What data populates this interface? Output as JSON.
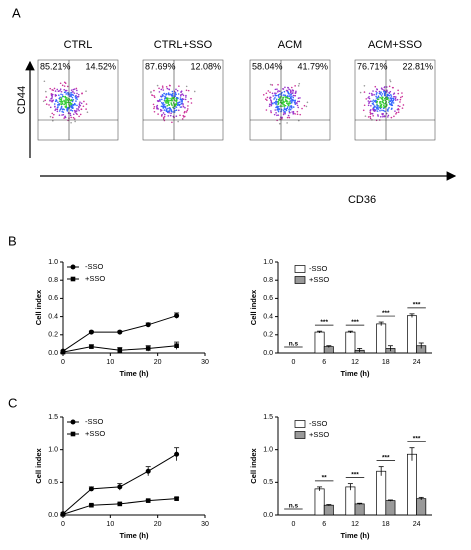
{
  "panel_labels": [
    "A",
    "B",
    "C"
  ],
  "flow": {
    "axis_y": "CD44",
    "axis_x": "CD36",
    "panels": [
      {
        "title": "CTRL",
        "left": "85.21%",
        "right": "14.52%"
      },
      {
        "title": "CTRL+SSO",
        "left": "87.69%",
        "right": "12.08%"
      },
      {
        "title": "ACM",
        "left": "58.04%",
        "right": "41.79%"
      },
      {
        "title": "ACM+SSO",
        "left": "76.71%",
        "right": "22.81%"
      }
    ]
  },
  "chart_data": [
    {
      "type": "line",
      "xlabel": "Time (h)",
      "ylabel": "Cell index",
      "x": [
        0,
        6,
        12,
        18,
        24
      ],
      "xlim": [
        0,
        30
      ],
      "xticks": [
        0,
        10,
        20,
        30
      ],
      "ylim": [
        0,
        1.0
      ],
      "yticks": [
        {
          "value": 0,
          "label": "0.0"
        },
        0.2,
        0.4,
        0.6,
        0.8,
        {
          "value": 1.0,
          "label": "1.0"
        }
      ],
      "series": [
        {
          "name": "-SSO",
          "color": "#000000",
          "marker": "circle",
          "values": [
            0.02,
            0.23,
            0.23,
            0.31,
            0.41
          ],
          "errors": [
            0,
            0.01,
            0.01,
            0.02,
            0.03
          ]
        },
        {
          "name": "+SSO",
          "color": "#000000",
          "marker": "square",
          "values": [
            0.01,
            0.07,
            0.03,
            0.05,
            0.08
          ],
          "errors": [
            0,
            0.02,
            0.03,
            0.03,
            0.04
          ]
        }
      ]
    },
    {
      "type": "bar",
      "xlabel": "Time (h)",
      "ylabel": "Cell index",
      "categories": [
        "0",
        "6",
        "12",
        "18",
        "24"
      ],
      "ylim": [
        0,
        1.0
      ],
      "yticks": [
        {
          "value": 0,
          "label": "0.0"
        },
        0.2,
        0.4,
        0.6,
        0.8,
        {
          "value": 1.0,
          "label": "1.0"
        }
      ],
      "annotations": [
        "n.s",
        "***",
        "***",
        "***",
        "***"
      ],
      "series": [
        {
          "name": "-SSO",
          "color": "#ffffff",
          "values": [
            0,
            0.23,
            0.23,
            0.32,
            0.41
          ],
          "errors": [
            0,
            0.01,
            0.01,
            0.02,
            0.02
          ]
        },
        {
          "name": "+SSO",
          "color": "#999999",
          "values": [
            0,
            0.07,
            0.03,
            0.05,
            0.08
          ],
          "errors": [
            0,
            0.01,
            0.02,
            0.03,
            0.03
          ]
        }
      ]
    },
    {
      "type": "line",
      "xlabel": "Time (h)",
      "ylabel": "Cell index",
      "x": [
        0,
        6,
        12,
        18,
        24
      ],
      "xlim": [
        0,
        30
      ],
      "xticks": [
        0,
        10,
        20,
        30
      ],
      "ylim": [
        0,
        1.5
      ],
      "yticks": [
        {
          "value": 0,
          "label": "0.0"
        },
        0.5,
        {
          "value": 1.0,
          "label": "1.0"
        },
        1.5
      ],
      "series": [
        {
          "name": "-SSO",
          "color": "#000000",
          "marker": "circle",
          "values": [
            0.02,
            0.4,
            0.43,
            0.67,
            0.93
          ],
          "errors": [
            0,
            0.03,
            0.05,
            0.07,
            0.1
          ]
        },
        {
          "name": "+SSO",
          "color": "#000000",
          "marker": "square",
          "values": [
            0.01,
            0.15,
            0.17,
            0.22,
            0.25
          ],
          "errors": [
            0,
            0.01,
            0.01,
            0.01,
            0.02
          ]
        }
      ]
    },
    {
      "type": "bar",
      "xlabel": "Time (h)",
      "ylabel": "Cell index",
      "categories": [
        "0",
        "6",
        "12",
        "18",
        "24"
      ],
      "ylim": [
        0,
        1.5
      ],
      "yticks": [
        {
          "value": 0,
          "label": "0.0"
        },
        0.5,
        {
          "value": 1.0,
          "label": "1.0"
        },
        1.5
      ],
      "annotations": [
        "n.s",
        "**",
        "***",
        "***",
        "***"
      ],
      "series": [
        {
          "name": "-SSO",
          "color": "#ffffff",
          "values": [
            0,
            0.4,
            0.43,
            0.67,
            0.93
          ],
          "errors": [
            0,
            0.03,
            0.05,
            0.07,
            0.1
          ]
        },
        {
          "name": "+SSO",
          "color": "#999999",
          "values": [
            0,
            0.15,
            0.17,
            0.22,
            0.25
          ],
          "errors": [
            0,
            0.01,
            0.01,
            0.01,
            0.02
          ]
        }
      ]
    }
  ]
}
